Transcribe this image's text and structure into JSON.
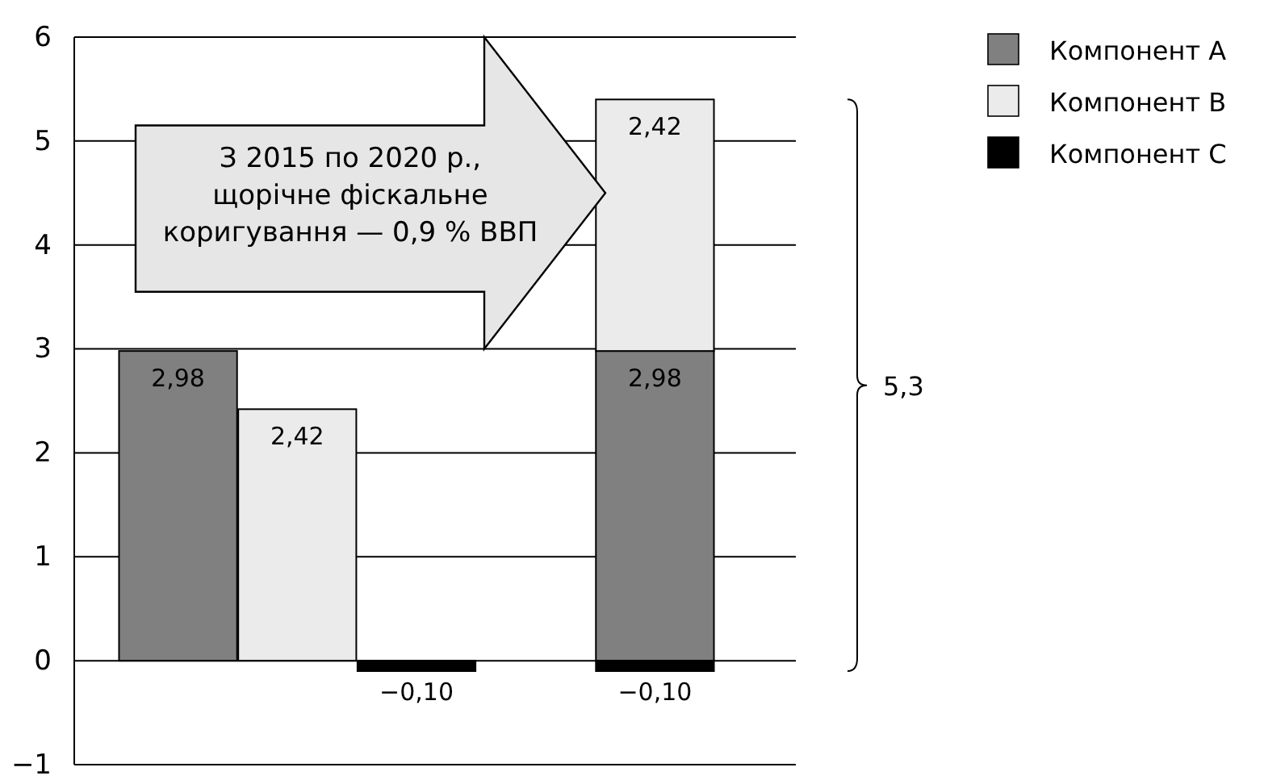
{
  "chart_data": {
    "type": "bar",
    "stacked": true,
    "categories": [
      null,
      null,
      null,
      null,
      null
    ],
    "series": [
      {
        "name": "Компонент A",
        "color": "#808080",
        "values": [
          2.98,
          null,
          null,
          null,
          2.98
        ],
        "value_labels": [
          "2,98",
          null,
          null,
          null,
          "2,98"
        ]
      },
      {
        "name": "Компонент B",
        "color": "#ebebeb",
        "values": [
          null,
          2.42,
          null,
          null,
          2.42
        ],
        "value_labels": [
          null,
          "2,42",
          null,
          null,
          "2,42"
        ]
      },
      {
        "name": "Компонент C",
        "color": "#000000",
        "values": [
          null,
          null,
          -0.1,
          null,
          -0.1
        ],
        "value_labels": [
          null,
          null,
          "−0,10",
          null,
          "−0,10"
        ]
      }
    ],
    "ylim": [
      -1,
      6
    ],
    "yticks": [
      {
        "value": -1,
        "label": "−1"
      },
      0,
      1,
      2,
      3,
      4,
      5,
      6
    ],
    "grid": "y",
    "legend": "top right",
    "annotations": [
      "З 2015 по 2020 р., щорічне фіскальне коригування — 0,9 % ВВП",
      "5,3"
    ]
  }
}
